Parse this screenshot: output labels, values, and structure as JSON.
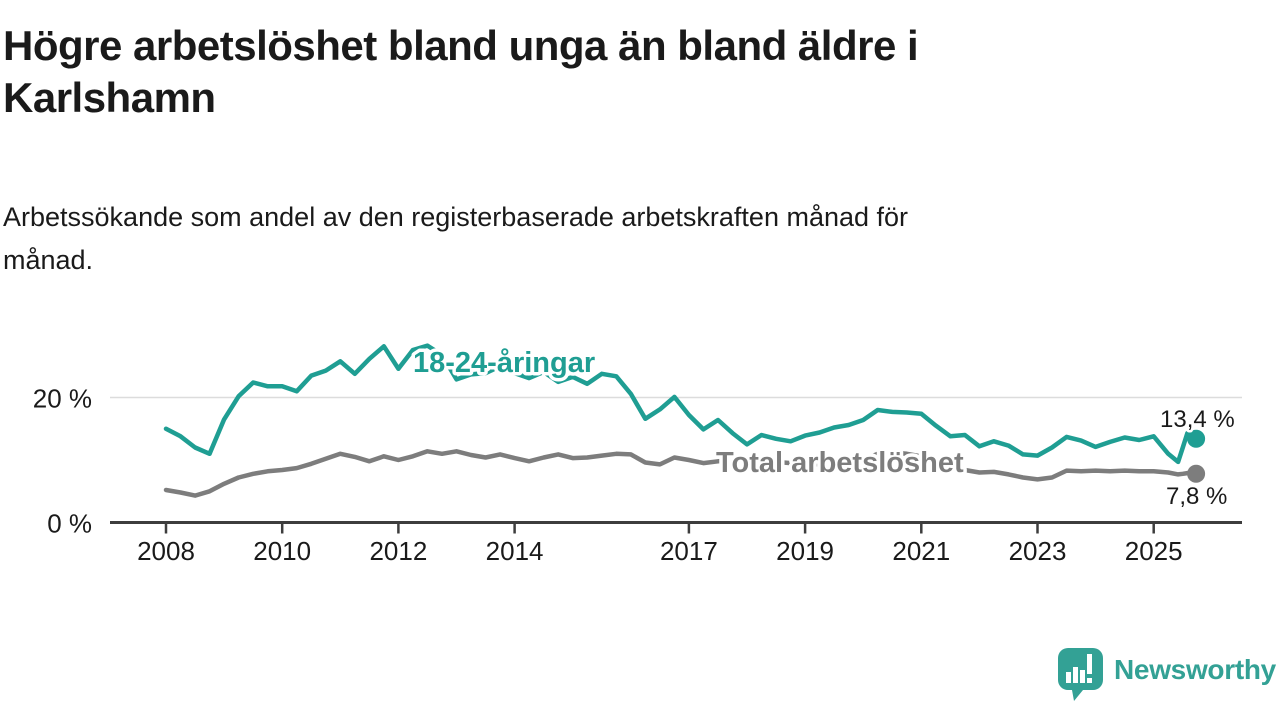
{
  "header": {
    "title_line1": "Högre arbetslöshet bland unga än bland äldre i",
    "title_line2": "Karlshamn",
    "subtitle_line1": "Arbetssökande som andel av den registerbaserade arbetskraften månad för",
    "subtitle_line2": "månad."
  },
  "footer": {
    "brand": "Newsworthy",
    "logo_icon": "newsworthy-speech-bubble-bar-chart-icon"
  },
  "colors": {
    "young_line": "#1f9e93",
    "total_line": "#7d7d7d",
    "axis": "#3d3d3d",
    "gridline": "#dcdcdc",
    "text": "#1a1a1a",
    "brand_teal": "#33a195"
  },
  "chart_data": {
    "type": "line",
    "title": "Högre arbetslöshet bland unga än bland äldre i Karlshamn",
    "subtitle": "Arbetssökande som andel av den registerbaserade arbetskraften månad för månad.",
    "xlabel": "",
    "ylabel": "",
    "x_axis": {
      "ticks": [
        2008,
        2010,
        2012,
        2014,
        2017,
        2019,
        2021,
        2023,
        2025
      ],
      "range": [
        2007.0,
        2026.6
      ]
    },
    "y_axis": {
      "ticks": [
        {
          "value": 0,
          "label": "0 %",
          "grid": false
        },
        {
          "value": 20,
          "label": "20 %",
          "grid": true
        }
      ],
      "range": [
        0,
        30
      ]
    },
    "legend_position": "inline-labels",
    "grid": "horizontal-20-only",
    "x": [
      2008.0,
      2008.25,
      2008.5,
      2008.75,
      2009.0,
      2009.25,
      2009.5,
      2009.75,
      2010.0,
      2010.25,
      2010.5,
      2010.75,
      2011.0,
      2011.25,
      2011.5,
      2011.75,
      2012.0,
      2012.25,
      2012.5,
      2012.75,
      2013.0,
      2013.25,
      2013.5,
      2013.75,
      2014.0,
      2014.25,
      2014.5,
      2014.75,
      2015.0,
      2015.25,
      2015.5,
      2015.75,
      2016.0,
      2016.25,
      2016.5,
      2016.75,
      2017.0,
      2017.25,
      2017.5,
      2017.75,
      2018.0,
      2018.25,
      2018.5,
      2018.75,
      2019.0,
      2019.25,
      2019.5,
      2019.75,
      2020.0,
      2020.25,
      2020.5,
      2020.75,
      2021.0,
      2021.25,
      2021.5,
      2021.75,
      2022.0,
      2022.25,
      2022.5,
      2022.75,
      2023.0,
      2023.25,
      2023.5,
      2023.75,
      2024.0,
      2024.25,
      2024.5,
      2024.75,
      2025.0,
      2025.25,
      2025.42,
      2025.5,
      2025.58,
      2025.67,
      2025.73
    ],
    "series": [
      {
        "name": "18-24-åringar",
        "color": "#1f9e93",
        "end_value": 13.4,
        "end_label": "13,4 %",
        "values": [
          15.0,
          13.8,
          12.0,
          11.0,
          16.5,
          20.2,
          22.4,
          21.8,
          21.8,
          21.0,
          23.5,
          24.3,
          25.8,
          23.8,
          26.2,
          28.2,
          24.6,
          27.6,
          28.3,
          26.8,
          22.9,
          23.7,
          23.9,
          25.0,
          23.9,
          23.1,
          24.1,
          22.5,
          23.3,
          22.2,
          23.8,
          23.4,
          20.6,
          16.6,
          18.1,
          20.1,
          17.2,
          14.9,
          16.4,
          14.3,
          12.5,
          14.0,
          13.4,
          13.0,
          13.9,
          14.4,
          15.2,
          15.6,
          16.4,
          18.0,
          17.7,
          17.6,
          17.4,
          15.5,
          13.8,
          14.0,
          12.2,
          13.0,
          12.3,
          10.9,
          10.7,
          12.0,
          13.7,
          13.1,
          12.1,
          12.9,
          13.6,
          13.2,
          13.8,
          11.0,
          9.7,
          12.0,
          14.3,
          13.6,
          13.4
        ]
      },
      {
        "name": "Total arbetslöshet",
        "color": "#7d7d7d",
        "end_value": 7.8,
        "end_label": "7,8 %",
        "values": [
          5.2,
          4.8,
          4.3,
          5.0,
          6.2,
          7.2,
          7.8,
          8.2,
          8.4,
          8.7,
          9.4,
          10.2,
          11.0,
          10.5,
          9.8,
          10.6,
          10.0,
          10.6,
          11.4,
          11.0,
          11.4,
          10.8,
          10.4,
          10.9,
          10.3,
          9.8,
          10.4,
          10.9,
          10.3,
          10.4,
          10.7,
          11.0,
          10.9,
          9.6,
          9.3,
          10.4,
          10.0,
          9.5,
          9.8,
          9.9,
          10.2,
          10.0,
          9.7,
          9.5,
          9.4,
          9.3,
          9.5,
          9.7,
          10.0,
          11.0,
          11.2,
          11.0,
          10.6,
          10.0,
          9.2,
          8.4,
          8.0,
          8.1,
          7.7,
          7.2,
          6.9,
          7.2,
          8.3,
          8.2,
          8.3,
          8.2,
          8.3,
          8.2,
          8.2,
          8.0,
          7.7,
          7.8,
          7.9,
          7.8,
          7.8
        ]
      }
    ]
  }
}
